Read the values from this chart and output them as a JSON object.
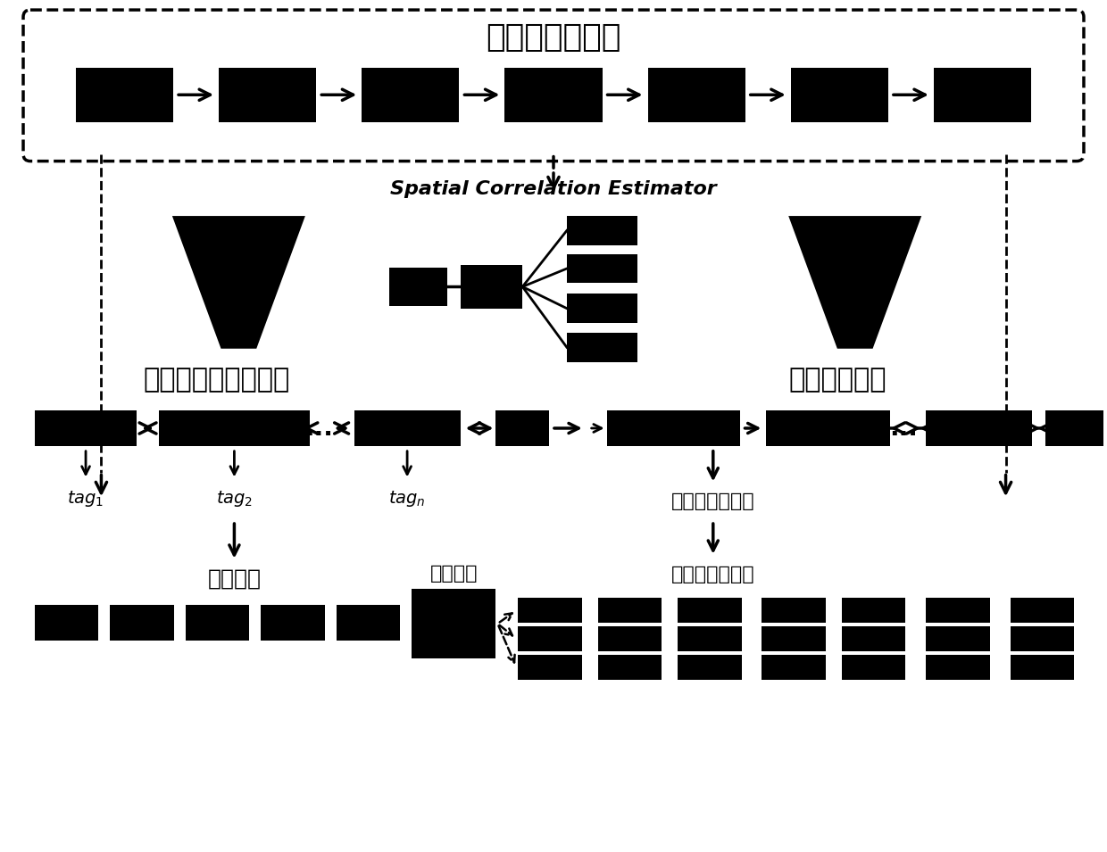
{
  "bg_color": "#ffffff",
  "black": "#000000",
  "title_top": "采集的轨迹数据",
  "label_sce": "Spatial Correlation Estimator",
  "label_detect": "检测错误和缺失数据",
  "label_predict": "预测缺失数据",
  "label_error_data": "错误数据",
  "label_repair": "数据修复",
  "label_candidate1": "候选的缺失数据",
  "label_candidate2": "候选的缺失数据"
}
